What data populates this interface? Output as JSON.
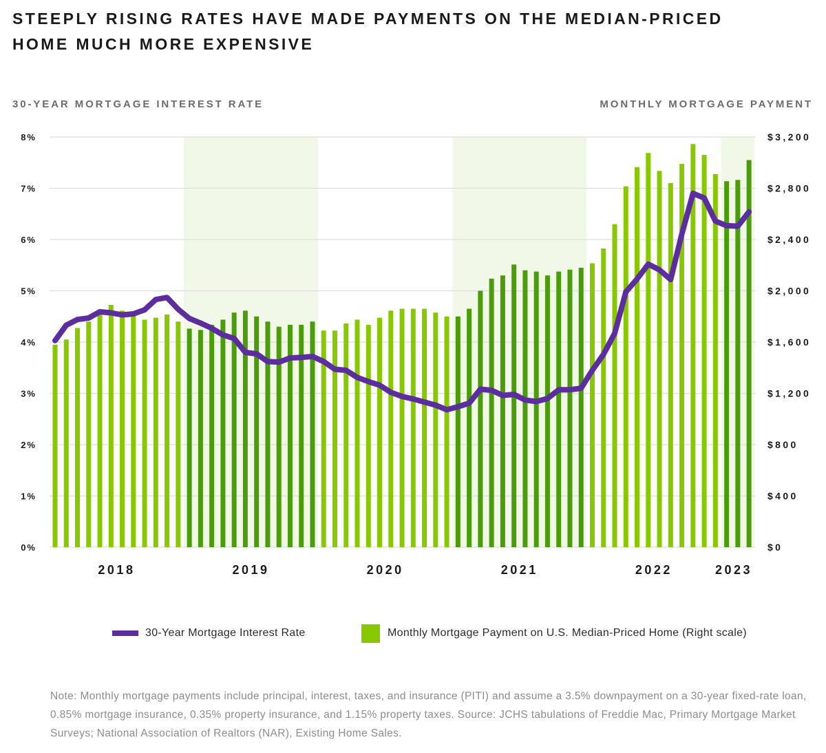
{
  "title_lines": [
    "STEEPLY RISING RATES HAVE MADE PAYMENTS ON THE MEDIAN-PRICED",
    "HOME MUCH MORE EXPENSIVE"
  ],
  "legend": {
    "rate_label": "30-Year Mortgage Interest Rate",
    "payment_label": "Monthly Mortgage Payment on U.S. Median-Priced Home (Right scale)"
  },
  "note": "Note: Monthly mortgage payments include principal, interest, taxes, and insurance (PITI) and assume a 3.5% downpayment on a 30-year fixed-rate loan, 0.85% mortgage insurance, 0.35% property insurance, and 1.15% property taxes. Source: JCHS tabulations of Freddie Mac, Primary Mortgage Market Surveys; National Association of Realtors (NAR), Existing Home Sales.",
  "colors": {
    "rate_line": "#5b2d9e",
    "bar_light": "#88c800",
    "bar_dark": "#4a9c0a",
    "shade": "#f1f8e7",
    "grid": "#dddddd",
    "tick_text": "#1a1a1a"
  },
  "chart_data": {
    "type": "bar",
    "combo": true,
    "title": "STEEPLY RISING RATES HAVE MADE PAYMENTS ON THE MEDIAN-PRICED HOME MUCH MORE EXPENSIVE",
    "xlabel": "",
    "x_tick_labels": [
      "2018",
      "2019",
      "2020",
      "2021",
      "2022",
      "2023"
    ],
    "shaded_years": [
      "2019",
      "2021",
      "2023"
    ],
    "grid": true,
    "legend_position": "bottom",
    "y_left": {
      "title": "30-YEAR MORTGAGE INTEREST RATE",
      "min": 0,
      "max": 8,
      "ticks": [
        0,
        1,
        2,
        3,
        4,
        5,
        6,
        7,
        8
      ],
      "tick_labels": [
        "0%",
        "1%",
        "2%",
        "3%",
        "4%",
        "5%",
        "6%",
        "7%",
        "8%"
      ]
    },
    "y_right": {
      "title": "MONTHLY MORTGAGE PAYMENT",
      "min": 0,
      "max": 3200,
      "ticks": [
        0,
        400,
        800,
        1200,
        1600,
        2000,
        2400,
        2800,
        3200
      ],
      "tick_labels": [
        "$0",
        "$400",
        "$800",
        "$1,200",
        "$1,600",
        "$2,000",
        "$2,400",
        "$2,800",
        "$3,200"
      ]
    },
    "categories": [
      "2018-01",
      "2018-02",
      "2018-03",
      "2018-04",
      "2018-05",
      "2018-06",
      "2018-07",
      "2018-08",
      "2018-09",
      "2018-10",
      "2018-11",
      "2018-12",
      "2019-01",
      "2019-02",
      "2019-03",
      "2019-04",
      "2019-05",
      "2019-06",
      "2019-07",
      "2019-08",
      "2019-09",
      "2019-10",
      "2019-11",
      "2019-12",
      "2020-01",
      "2020-02",
      "2020-03",
      "2020-04",
      "2020-05",
      "2020-06",
      "2020-07",
      "2020-08",
      "2020-09",
      "2020-10",
      "2020-11",
      "2020-12",
      "2021-01",
      "2021-02",
      "2021-03",
      "2021-04",
      "2021-05",
      "2021-06",
      "2021-07",
      "2021-08",
      "2021-09",
      "2021-10",
      "2021-11",
      "2021-12",
      "2022-01",
      "2022-02",
      "2022-03",
      "2022-04",
      "2022-05",
      "2022-06",
      "2022-07",
      "2022-08",
      "2022-09",
      "2022-10",
      "2022-11",
      "2022-12",
      "2023-01",
      "2023-02",
      "2023-03"
    ],
    "series": [
      {
        "name": "Monthly Mortgage Payment on U.S. Median-Priced Home (Right scale)",
        "type": "bar",
        "axis": "right",
        "values": [
          1580,
          1620,
          1710,
          1760,
          1830,
          1890,
          1845,
          1805,
          1775,
          1790,
          1815,
          1760,
          1705,
          1695,
          1735,
          1775,
          1830,
          1845,
          1800,
          1760,
          1720,
          1735,
          1735,
          1760,
          1690,
          1690,
          1745,
          1775,
          1735,
          1790,
          1845,
          1860,
          1860,
          1860,
          1830,
          1800,
          1800,
          1860,
          2000,
          2095,
          2120,
          2205,
          2160,
          2150,
          2120,
          2150,
          2165,
          2180,
          2215,
          2330,
          2520,
          2815,
          2965,
          3075,
          2935,
          2840,
          2990,
          3145,
          3060,
          2910,
          2855,
          2865,
          3020
        ]
      },
      {
        "name": "30-Year Mortgage Interest Rate",
        "type": "line",
        "axis": "left",
        "values": [
          4.03,
          4.33,
          4.44,
          4.47,
          4.59,
          4.57,
          4.53,
          4.55,
          4.63,
          4.83,
          4.87,
          4.64,
          4.46,
          4.37,
          4.27,
          4.14,
          4.07,
          3.8,
          3.77,
          3.62,
          3.61,
          3.69,
          3.7,
          3.72,
          3.62,
          3.47,
          3.45,
          3.31,
          3.23,
          3.16,
          3.02,
          2.94,
          2.89,
          2.83,
          2.77,
          2.68,
          2.74,
          2.81,
          3.08,
          3.06,
          2.96,
          2.98,
          2.87,
          2.84,
          2.9,
          3.07,
          3.07,
          3.1,
          3.45,
          3.76,
          4.17,
          4.98,
          5.23,
          5.52,
          5.41,
          5.22,
          6.11,
          6.9,
          6.81,
          6.36,
          6.27,
          6.26,
          6.54
        ]
      }
    ]
  }
}
